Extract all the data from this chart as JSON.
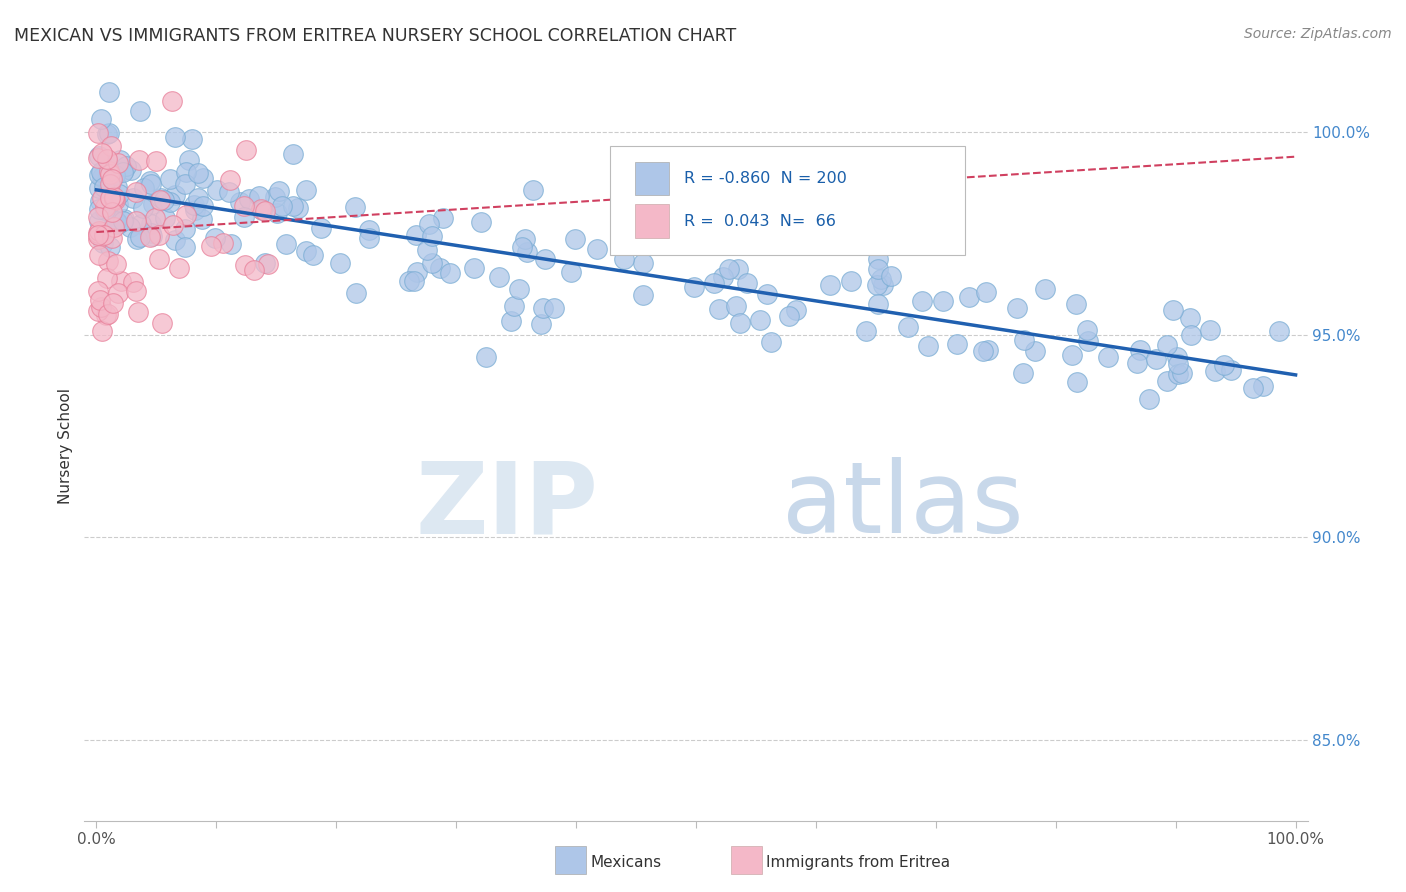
{
  "title": "MEXICAN VS IMMIGRANTS FROM ERITREA NURSERY SCHOOL CORRELATION CHART",
  "source": "Source: ZipAtlas.com",
  "ylabel": "Nursery School",
  "right_yticks": [
    85.0,
    90.0,
    95.0,
    100.0
  ],
  "ylim_min": 83.0,
  "ylim_max": 101.5,
  "xlim_min": -1.0,
  "xlim_max": 101.0,
  "legend": {
    "blue_r": "-0.860",
    "blue_n": "200",
    "pink_r": "0.043",
    "pink_n": "66"
  },
  "blue_color": "#aec6e8",
  "blue_edge_color": "#7aadd4",
  "pink_color": "#f4b8c8",
  "pink_edge_color": "#e8809a",
  "blue_line_color": "#2060b0",
  "pink_line_color": "#d04060",
  "watermark_zip_color": "#dde8f2",
  "watermark_atlas_color": "#c8d8ea",
  "ytick_color": "#4488cc",
  "title_color": "#333333",
  "source_color": "#888888",
  "grid_color": "#cccccc",
  "spine_color": "#bbbbbb"
}
